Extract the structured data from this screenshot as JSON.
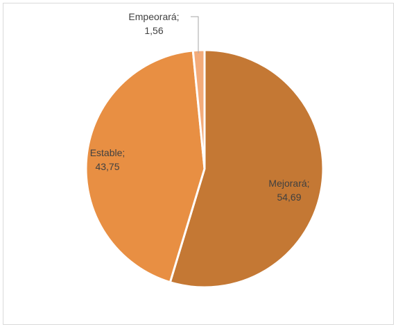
{
  "chart_data": {
    "type": "pie",
    "title": "",
    "slices": [
      {
        "label": "Mejorará",
        "value": 54.69,
        "value_text": "54,69",
        "color": "#C47834"
      },
      {
        "label": "Estable",
        "value": 43.75,
        "value_text": "43,75",
        "color": "#E88F43"
      },
      {
        "label": "Empeorará",
        "value": 1.56,
        "value_text": "1,56",
        "color": "#F3AB7A"
      }
    ],
    "start_angle_deg": 0,
    "direction": "clockwise",
    "legend": "none",
    "data_labels": "category-and-value"
  }
}
